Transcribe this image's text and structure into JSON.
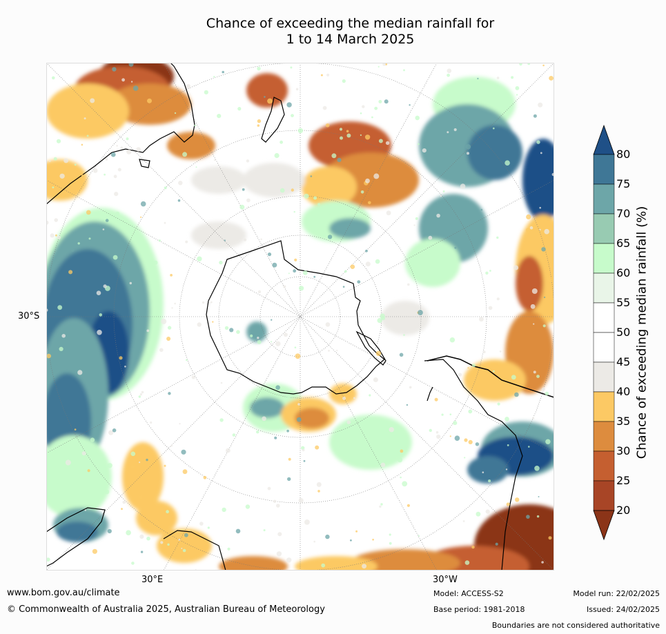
{
  "title": {
    "line1": "Chance of exceeding the median rainfall for",
    "line2": "1 to 14 March 2025"
  },
  "map": {
    "projection": "south polar stereographic",
    "lat_label": "30°S",
    "lon_label_east": "30°E",
    "lon_label_west": "30°W"
  },
  "legend": {
    "label": "Chance of exceeding median rainfall (%)",
    "ticks": [
      "20",
      "25",
      "30",
      "35",
      "40",
      "45",
      "50",
      "55",
      "60",
      "65",
      "70",
      "75",
      "80"
    ],
    "colors": [
      "#8b3418",
      "#a84526",
      "#c55f30",
      "#dd8c3e",
      "#fcc964",
      "#eceae6",
      "#ffffff",
      "#ffffff",
      "#e9f5e8",
      "#c7fbcb",
      "#98cbb2",
      "#6da6a8",
      "#3f7796",
      "#1f5087"
    ],
    "extends": "both"
  },
  "footer": {
    "url": "www.bom.gov.au/climate",
    "copyright": "© Commonwealth of Australia 2025, Australian Bureau of Meteorology",
    "model": "Model: ACCESS-S2",
    "base_period": "Base period: 1981-2018",
    "model_run": "Model run: 22/02/2025",
    "issued": "Issued: 24/02/2025",
    "disclaimer": "Boundaries are not considered authoritative"
  },
  "region_colors": {
    "very_dry": "#8b3418",
    "dry": "#c55f30",
    "orange": "#dd8c3e",
    "yellow": "#fcc964",
    "grey": "#eceae6",
    "light_green": "#c7fbcb",
    "teal": "#6da6a8",
    "blue": "#3f7796",
    "dark_blue": "#1f5087"
  }
}
